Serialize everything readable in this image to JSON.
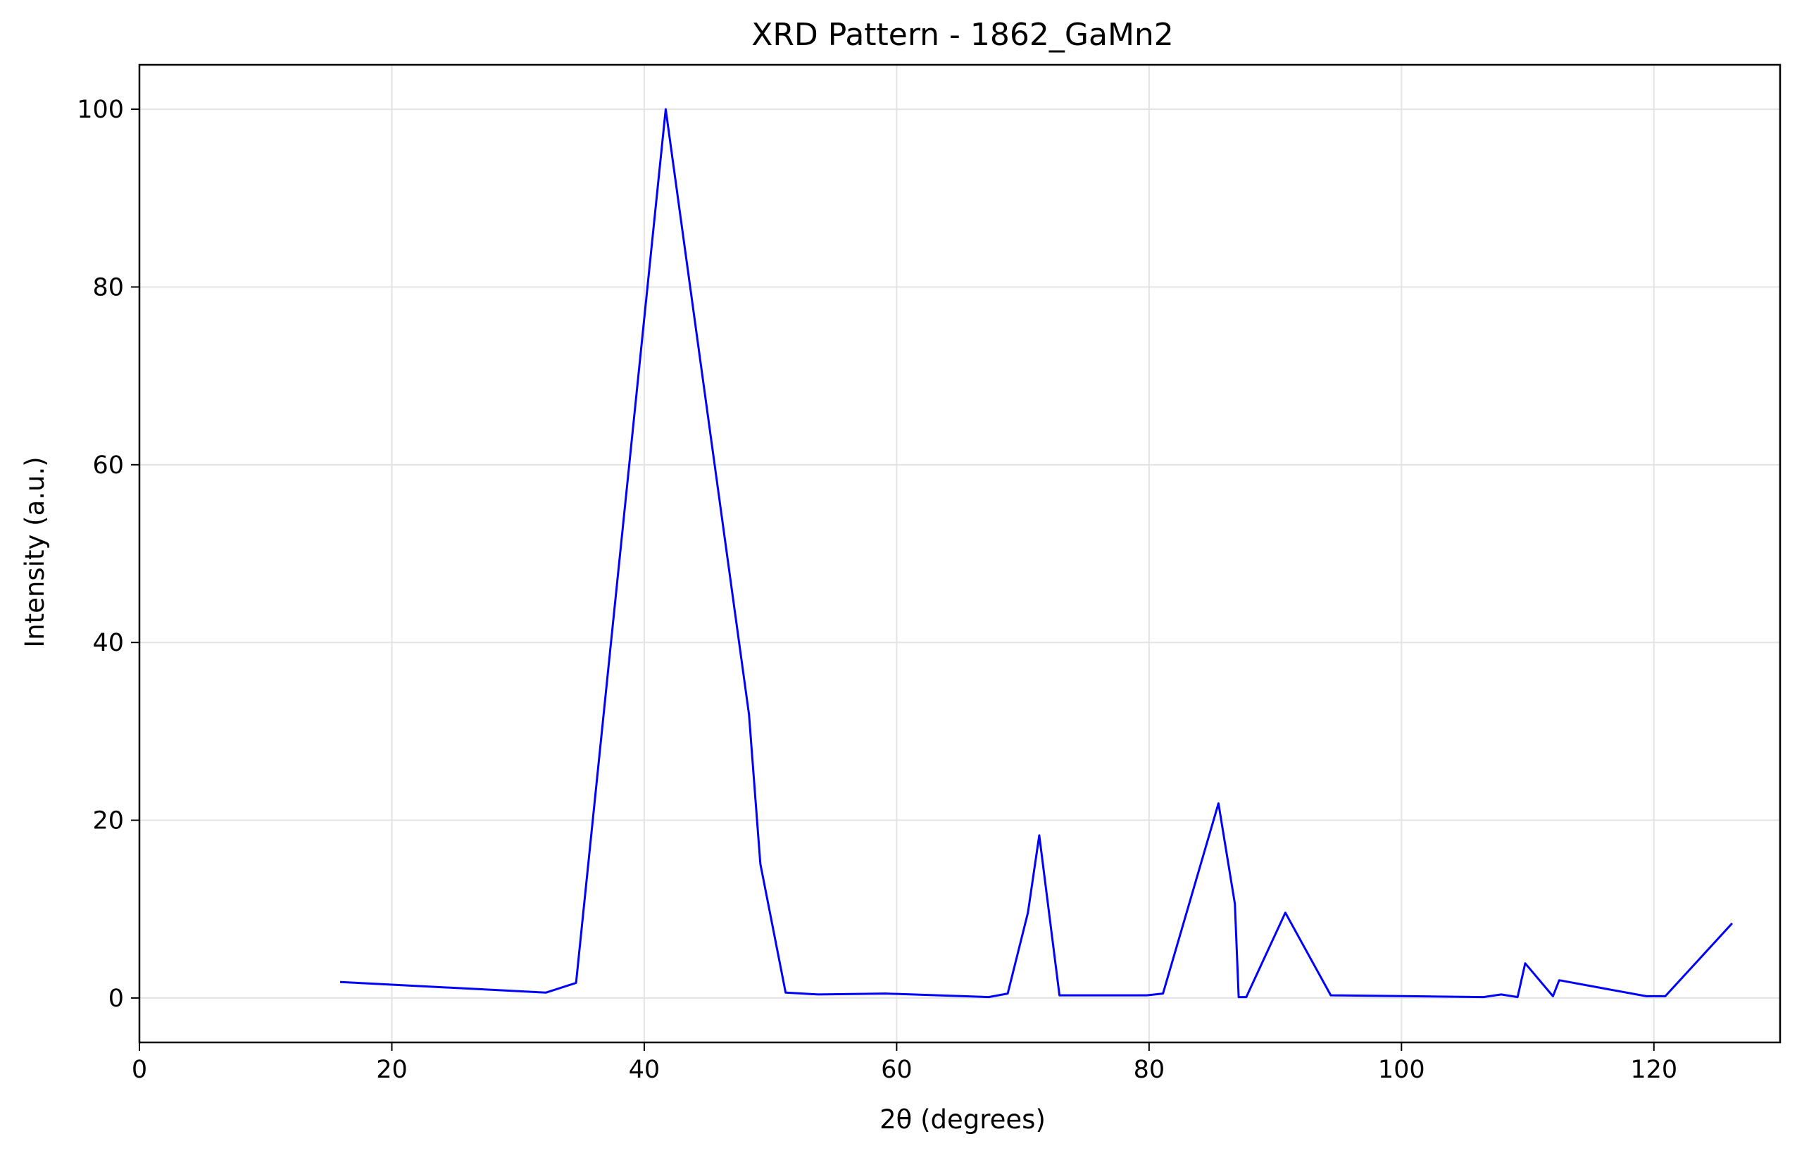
{
  "chart_data": {
    "type": "line",
    "title": "XRD Pattern - 1862_GaMn2",
    "xlabel": "2θ (degrees)",
    "ylabel": "Intensity (a.u.)",
    "xlim": [
      0,
      130
    ],
    "ylim": [
      -5,
      105
    ],
    "xticks": [
      0,
      20,
      40,
      60,
      80,
      100,
      120
    ],
    "yticks": [
      0,
      20,
      40,
      60,
      80,
      100
    ],
    "grid": true,
    "line_color": "#0000ff",
    "series": [
      {
        "x": [
          15.9,
          32.2,
          34.6,
          41.7,
          48.3,
          49.2,
          51.2,
          53.8,
          59.1,
          67.3,
          68.8,
          70.4,
          71.3,
          72.9,
          79.8,
          81.1,
          85.5,
          86.8,
          87.1,
          87.7,
          90.8,
          94.4,
          106.5,
          107.9,
          109.2,
          109.8,
          112.0,
          112.5,
          119.4,
          120.9,
          126.2
        ],
        "y": [
          1.8,
          0.6,
          1.7,
          100.0,
          31.9,
          15.1,
          0.6,
          0.4,
          0.5,
          0.1,
          0.5,
          9.6,
          18.3,
          0.3,
          0.3,
          0.5,
          21.9,
          10.6,
          0.1,
          0.1,
          9.6,
          0.3,
          0.1,
          0.4,
          0.1,
          3.9,
          0.2,
          2.0,
          0.2,
          0.2,
          8.4
        ]
      }
    ]
  }
}
